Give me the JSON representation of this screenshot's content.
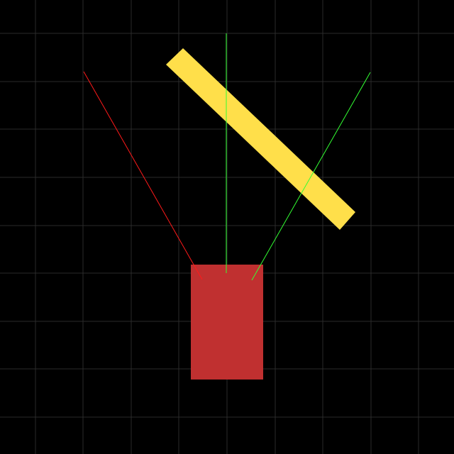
{
  "canvas": {
    "background": "#000000",
    "grid_color": "#2a2a2a"
  },
  "objects": {
    "red_block_color": "#c03030",
    "yellow_bar_color": "#ffdf4a",
    "red_ray_color": "#ff1a1a",
    "green_ray_color": "#33ff33"
  }
}
